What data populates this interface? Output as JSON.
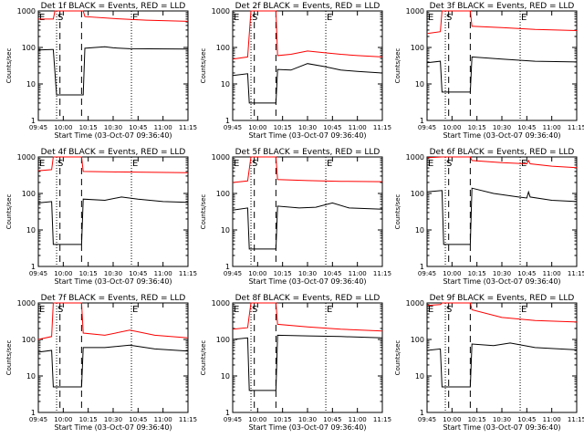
{
  "chart_data": {
    "type": "line",
    "panel_titles": [
      "Det 1f BLACK = Events, RED = LLD",
      "Det 2f BLACK = Events, RED = LLD",
      "Det 3f BLACK = Events, RED = LLD",
      "Det 4f BLACK = Events, RED = LLD",
      "Det 5f BLACK = Events, RED = LLD",
      "Det 6f BLACK = Events, RED = LLD",
      "Det 7f BLACK = Events, RED = LLD",
      "Det 8f BLACK = Events, RED = LLD",
      "Det 9f BLACK = Events, RED = LLD"
    ],
    "xlabel": "Start Time (03-Oct-07 09:36:40)",
    "ylabel": "Counts/sec",
    "x_ticks": [
      "09:45",
      "10:00",
      "10:15",
      "10:30",
      "10:45",
      "11:00",
      "11:15"
    ],
    "y_ticks": [
      "1",
      "10",
      "100",
      "1000"
    ],
    "y_scale": "log",
    "ylim": [
      1,
      1000
    ],
    "xlim_min": [
      45,
      135
    ],
    "markers": [
      {
        "label": "E",
        "x_min": 45
      },
      {
        "label": "S",
        "x_min": 56
      },
      {
        "label": "E",
        "x_min": 101
      }
    ],
    "colors": {
      "events": "#000000",
      "lld": "#ff0000"
    },
    "panels": [
      {
        "events": [
          [
            45,
            85
          ],
          [
            53,
            88
          ],
          [
            54,
            88
          ],
          [
            56,
            5
          ],
          [
            58,
            5
          ],
          [
            71,
            5
          ],
          [
            72,
            5
          ],
          [
            73,
            95
          ],
          [
            85,
            105
          ],
          [
            90,
            98
          ],
          [
            100,
            92
          ],
          [
            135,
            90
          ]
        ],
        "lld": [
          [
            45,
            600
          ],
          [
            54,
            600
          ],
          [
            55,
            1100
          ],
          [
            71,
            1100
          ],
          [
            72,
            1100
          ],
          [
            73,
            700
          ],
          [
            90,
            620
          ],
          [
            110,
            560
          ],
          [
            135,
            520
          ]
        ]
      },
      {
        "events": [
          [
            45,
            17
          ],
          [
            54,
            19
          ],
          [
            55,
            3
          ],
          [
            56,
            3
          ],
          [
            70,
            3
          ],
          [
            71,
            3
          ],
          [
            72,
            25
          ],
          [
            80,
            24
          ],
          [
            90,
            36
          ],
          [
            100,
            30
          ],
          [
            110,
            24
          ],
          [
            120,
            22
          ],
          [
            135,
            20
          ]
        ],
        "lld": [
          [
            45,
            48
          ],
          [
            54,
            55
          ],
          [
            56,
            1100
          ],
          [
            70,
            1100
          ],
          [
            71,
            1100
          ],
          [
            72,
            60
          ],
          [
            80,
            65
          ],
          [
            90,
            80
          ],
          [
            100,
            72
          ],
          [
            110,
            65
          ],
          [
            120,
            60
          ],
          [
            135,
            55
          ]
        ]
      },
      {
        "events": [
          [
            45,
            38
          ],
          [
            53,
            42
          ],
          [
            54,
            6
          ],
          [
            55,
            6
          ],
          [
            70,
            6
          ],
          [
            71,
            6
          ],
          [
            72,
            55
          ],
          [
            90,
            48
          ],
          [
            110,
            42
          ],
          [
            135,
            40
          ]
        ],
        "lld": [
          [
            45,
            240
          ],
          [
            53,
            270
          ],
          [
            54,
            1100
          ],
          [
            71,
            1100
          ],
          [
            72,
            380
          ],
          [
            90,
            350
          ],
          [
            110,
            310
          ],
          [
            135,
            290
          ]
        ]
      },
      {
        "events": [
          [
            45,
            55
          ],
          [
            53,
            60
          ],
          [
            54,
            4
          ],
          [
            55,
            4
          ],
          [
            70,
            4
          ],
          [
            71,
            4
          ],
          [
            72,
            70
          ],
          [
            85,
            65
          ],
          [
            95,
            80
          ],
          [
            105,
            70
          ],
          [
            120,
            60
          ],
          [
            135,
            57
          ]
        ],
        "lld": [
          [
            45,
            420
          ],
          [
            53,
            450
          ],
          [
            54,
            1100
          ],
          [
            71,
            1100
          ],
          [
            72,
            400
          ],
          [
            90,
            390
          ],
          [
            110,
            380
          ],
          [
            135,
            370
          ]
        ]
      },
      {
        "events": [
          [
            45,
            35
          ],
          [
            54,
            40
          ],
          [
            55,
            3
          ],
          [
            56,
            3
          ],
          [
            70,
            3
          ],
          [
            71,
            3
          ],
          [
            72,
            45
          ],
          [
            85,
            40
          ],
          [
            95,
            42
          ],
          [
            105,
            55
          ],
          [
            115,
            40
          ],
          [
            135,
            37
          ]
        ],
        "lld": [
          [
            45,
            200
          ],
          [
            54,
            220
          ],
          [
            56,
            1100
          ],
          [
            70,
            1100
          ],
          [
            71,
            1100
          ],
          [
            72,
            240
          ],
          [
            90,
            225
          ],
          [
            110,
            215
          ],
          [
            135,
            210
          ]
        ]
      },
      {
        "events": [
          [
            45,
            110
          ],
          [
            54,
            120
          ],
          [
            55,
            4
          ],
          [
            56,
            4
          ],
          [
            70,
            4
          ],
          [
            71,
            4
          ],
          [
            72,
            140
          ],
          [
            85,
            100
          ],
          [
            100,
            80
          ],
          [
            105,
            75
          ],
          [
            106,
            110
          ],
          [
            107,
            80
          ],
          [
            120,
            65
          ],
          [
            135,
            60
          ]
        ],
        "lld": [
          [
            45,
            950
          ],
          [
            54,
            1000
          ],
          [
            55,
            1100
          ],
          [
            71,
            1100
          ],
          [
            72,
            800
          ],
          [
            90,
            700
          ],
          [
            105,
            650
          ],
          [
            106,
            800
          ],
          [
            107,
            650
          ],
          [
            120,
            560
          ],
          [
            135,
            510
          ]
        ]
      },
      {
        "events": [
          [
            45,
            45
          ],
          [
            53,
            50
          ],
          [
            54,
            5
          ],
          [
            55,
            5
          ],
          [
            70,
            5
          ],
          [
            71,
            5
          ],
          [
            72,
            60
          ],
          [
            85,
            60
          ],
          [
            100,
            70
          ],
          [
            115,
            55
          ],
          [
            135,
            48
          ]
        ],
        "lld": [
          [
            45,
            100
          ],
          [
            53,
            120
          ],
          [
            54,
            1100
          ],
          [
            71,
            1100
          ],
          [
            72,
            150
          ],
          [
            85,
            130
          ],
          [
            100,
            180
          ],
          [
            115,
            130
          ],
          [
            135,
            110
          ]
        ]
      },
      {
        "events": [
          [
            45,
            100
          ],
          [
            54,
            110
          ],
          [
            55,
            4
          ],
          [
            56,
            4
          ],
          [
            70,
            4
          ],
          [
            71,
            4
          ],
          [
            72,
            130
          ],
          [
            90,
            125
          ],
          [
            110,
            120
          ],
          [
            135,
            110
          ]
        ],
        "lld": [
          [
            45,
            190
          ],
          [
            54,
            210
          ],
          [
            56,
            1100
          ],
          [
            70,
            1100
          ],
          [
            71,
            1100
          ],
          [
            72,
            260
          ],
          [
            90,
            220
          ],
          [
            110,
            190
          ],
          [
            135,
            170
          ]
        ]
      },
      {
        "events": [
          [
            45,
            50
          ],
          [
            53,
            55
          ],
          [
            54,
            5
          ],
          [
            55,
            5
          ],
          [
            70,
            5
          ],
          [
            71,
            5
          ],
          [
            72,
            75
          ],
          [
            85,
            68
          ],
          [
            95,
            80
          ],
          [
            110,
            60
          ],
          [
            135,
            52
          ]
        ],
        "lld": [
          [
            45,
            850
          ],
          [
            53,
            900
          ],
          [
            54,
            1100
          ],
          [
            71,
            1100
          ],
          [
            72,
            650
          ],
          [
            90,
            400
          ],
          [
            110,
            330
          ],
          [
            135,
            300
          ]
        ]
      }
    ]
  }
}
